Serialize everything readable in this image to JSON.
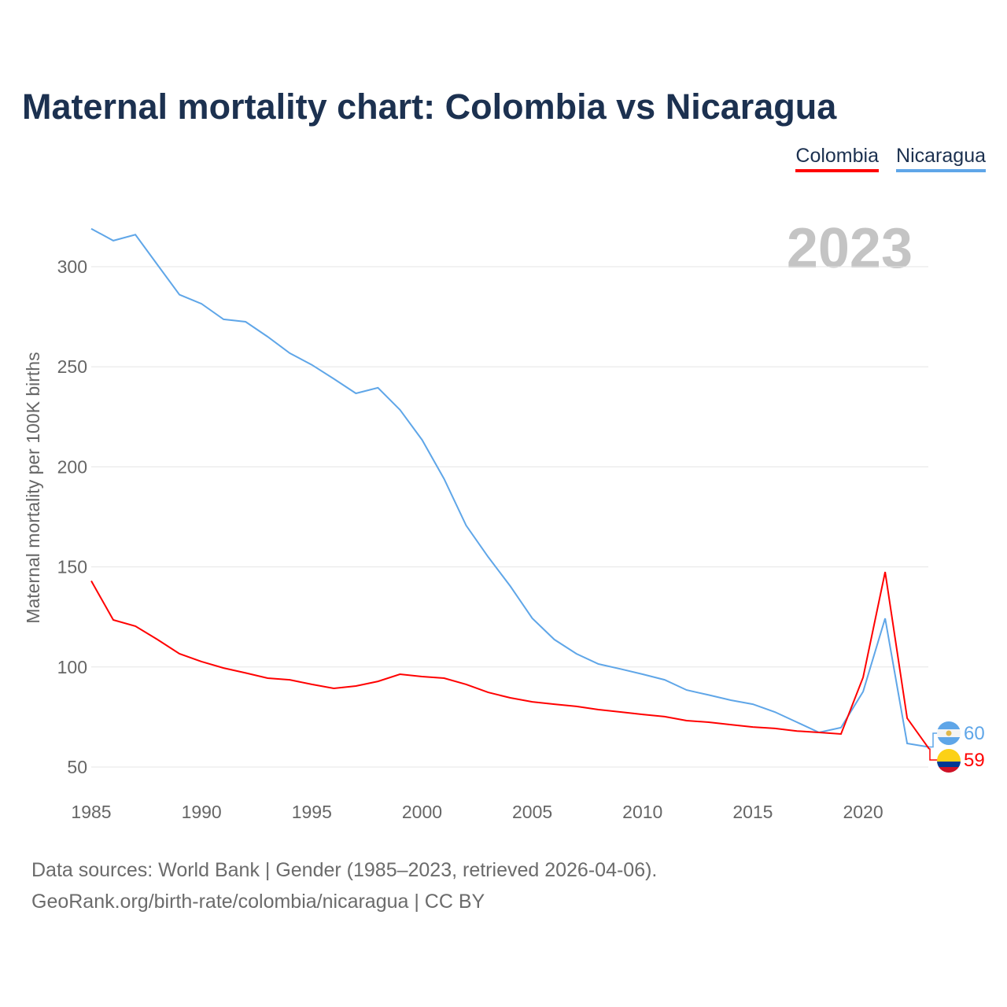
{
  "title": "Maternal mortality chart: Colombia vs Nicaragua",
  "legend": [
    "Colombia",
    "Nicaragua"
  ],
  "footer": {
    "line1": "Data sources: World Bank | Gender (1985–2023, retrieved 2026-04-06).",
    "line2": "GeoRank.org/birth-rate/colombia/nicaragua | CC BY"
  },
  "chart_data": {
    "type": "line",
    "title": "Maternal mortality chart: Colombia vs Nicaragua",
    "ylabel": "Maternal mortality per 100K births",
    "xlabel": "",
    "year_label": "2023",
    "xlim": [
      1985,
      2023
    ],
    "ylim": [
      50,
      320
    ],
    "yticks": [
      50,
      100,
      150,
      200,
      250,
      300
    ],
    "xticks": [
      1985,
      1990,
      1995,
      2000,
      2005,
      2010,
      2015,
      2020
    ],
    "grid": true,
    "legend_position": "top-right",
    "x": [
      1985,
      1986,
      1987,
      1988,
      1989,
      1990,
      1991,
      1992,
      1993,
      1994,
      1995,
      1996,
      1997,
      1998,
      1999,
      2000,
      2001,
      2002,
      2003,
      2004,
      2005,
      2006,
      2007,
      2008,
      2009,
      2010,
      2011,
      2012,
      2013,
      2014,
      2015,
      2016,
      2017,
      2018,
      2019,
      2020,
      2021,
      2022,
      2023
    ],
    "series": [
      {
        "name": "Colombia",
        "color": "#ff0000",
        "end_label": "59",
        "values": [
          143,
          123.5,
          120.4,
          113.7,
          106.6,
          102.7,
          99.5,
          97,
          94.4,
          93.6,
          91.3,
          89.3,
          90.5,
          92.8,
          96.4,
          95.2,
          94.4,
          91.3,
          87.3,
          84.6,
          82.6,
          81.4,
          80.3,
          78.7,
          77.5,
          76.3,
          75.2,
          73.2,
          72.4,
          71.2,
          70,
          69.3,
          68,
          67.3,
          66.5,
          94.8,
          147.5,
          74.4,
          59
        ]
      },
      {
        "name": "Nicaragua",
        "color": "#5fa6e8",
        "end_label": "60",
        "values": [
          319,
          313,
          316,
          301,
          286,
          281.5,
          273.7,
          272.5,
          265,
          256.8,
          251,
          244,
          236.7,
          239.5,
          228.5,
          213.5,
          194,
          170.7,
          155,
          140.4,
          124.3,
          113.7,
          106.6,
          101.5,
          99,
          96.4,
          93.6,
          88.5,
          86,
          83.4,
          81.4,
          77.5,
          72.4,
          67.3,
          69.7,
          87.7,
          124.3,
          61.8,
          60
        ]
      }
    ]
  }
}
